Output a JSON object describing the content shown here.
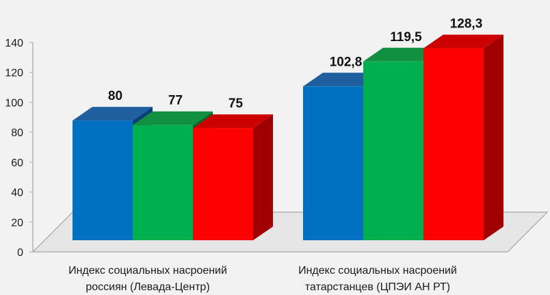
{
  "chart_data": {
    "type": "bar",
    "title": "",
    "xlabel": "",
    "ylabel": "",
    "ylim": [
      0,
      140
    ],
    "yticks": [
      "0",
      "20",
      "40",
      "60",
      "80",
      "100",
      "120",
      "140"
    ],
    "grid": false,
    "legend": "none",
    "categories": [
      [
        "Индекс социальных насроений",
        "россиян (Левада-Центр)"
      ],
      [
        "Индекс социальных насроений",
        "татарстанцев (ЦПЭИ АН РТ)"
      ]
    ],
    "series": [
      {
        "values": [
          80,
          102.8
        ],
        "labels": [
          "80",
          "102,8"
        ],
        "color": "#0070c0",
        "top_color": "#1f5fa0",
        "side_color": "#0a3f7a"
      },
      {
        "values": [
          77,
          119.5
        ],
        "labels": [
          "77",
          "119,5"
        ],
        "color": "#00b050",
        "top_color": "#109040",
        "side_color": "#006b2e"
      },
      {
        "values": [
          75,
          128.3
        ],
        "labels": [
          "75",
          "128,3"
        ],
        "color": "#ff0000",
        "top_color": "#cc0000",
        "side_color": "#a00000"
      }
    ]
  }
}
